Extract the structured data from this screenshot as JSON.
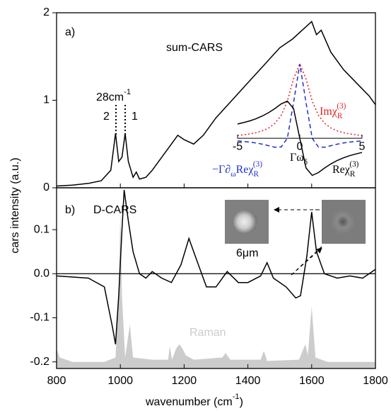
{
  "chart_data": [
    {
      "type": "line",
      "panel_label": "a)",
      "xlim": [
        800,
        1800
      ],
      "ylim": [
        0,
        2
      ],
      "yticks": [
        0,
        1,
        2
      ],
      "series": [
        {
          "name": "sum-CARS",
          "color": "#000000",
          "x": [
            800,
            850,
            900,
            940,
            970,
            985,
            995,
            1005,
            1015,
            1025,
            1040,
            1050,
            1060,
            1080,
            1100,
            1130,
            1160,
            1180,
            1200,
            1230,
            1260,
            1300,
            1350,
            1400,
            1450,
            1500,
            1540,
            1570,
            1600,
            1615,
            1630,
            1660,
            1700,
            1740,
            1780,
            1800
          ],
          "values": [
            0.02,
            0.03,
            0.05,
            0.08,
            0.2,
            0.62,
            0.3,
            0.35,
            0.62,
            0.3,
            0.12,
            0.18,
            0.1,
            0.12,
            0.2,
            0.35,
            0.5,
            0.6,
            0.55,
            0.5,
            0.6,
            0.8,
            1.0,
            1.2,
            1.4,
            1.6,
            1.7,
            1.8,
            1.9,
            1.75,
            1.8,
            1.55,
            1.35,
            1.2,
            1.05,
            0.95
          ]
        }
      ],
      "annotations": [
        [
          {
            "text": "28cm"
          },
          {
            "sup": "-1"
          }
        ],
        [
          {
            "text": "2"
          }
        ],
        [
          {
            "text": "1"
          }
        ]
      ]
    },
    {
      "type": "line",
      "panel_label": "b)",
      "xlim": [
        800,
        1800
      ],
      "xticks": [
        800,
        1000,
        1200,
        1400,
        1600,
        1800
      ],
      "ylim": [
        -0.215,
        0.195
      ],
      "yticks": [
        0.1,
        {
          "value": 0,
          "label": "0.0"
        },
        -0.1,
        -0.2
      ],
      "xlabel": [
        {
          "text": "wavenumber (cm"
        },
        {
          "sup": "-1"
        },
        {
          "text": ")"
        }
      ],
      "ylabel": "cars intensity (a.u.)",
      "series": [
        {
          "name": "Raman",
          "color": "#cccccc",
          "fill": true,
          "x": [
            800,
            810,
            850,
            950,
            985,
            995,
            1000,
            1005,
            1015,
            1030,
            1040,
            1100,
            1150,
            1155,
            1162,
            1175,
            1185,
            1195,
            1205,
            1230,
            1320,
            1330,
            1345,
            1440,
            1450,
            1460,
            1560,
            1580,
            1588,
            1600,
            1612,
            1650,
            1800
          ],
          "values": [
            -0.17,
            -0.19,
            -0.2,
            -0.2,
            -0.19,
            -0.05,
            0.14,
            -0.05,
            -0.19,
            -0.115,
            -0.19,
            -0.195,
            -0.195,
            -0.165,
            -0.195,
            -0.17,
            -0.16,
            -0.17,
            -0.185,
            -0.195,
            -0.19,
            -0.18,
            -0.195,
            -0.195,
            -0.175,
            -0.198,
            -0.195,
            -0.16,
            -0.185,
            -0.075,
            -0.19,
            -0.2,
            -0.2
          ]
        },
        {
          "name": "D-CARS",
          "color": "#000000",
          "x": [
            800,
            900,
            950,
            975,
            985,
            995,
            1005,
            1012,
            1025,
            1040,
            1060,
            1080,
            1100,
            1130,
            1160,
            1190,
            1215,
            1240,
            1270,
            1300,
            1335,
            1370,
            1400,
            1440,
            1460,
            1480,
            1520,
            1550,
            1565,
            1585,
            1600,
            1615,
            1640,
            1680,
            1720,
            1760,
            1800
          ],
          "values": [
            -0.005,
            -0.01,
            -0.03,
            -0.12,
            -0.16,
            -0.05,
            0.1,
            0.19,
            0.12,
            0.05,
            0.0,
            -0.01,
            0.005,
            -0.01,
            -0.02,
            0.02,
            0.08,
            0.03,
            -0.03,
            -0.03,
            0.005,
            -0.02,
            -0.02,
            -0.005,
            0.025,
            -0.01,
            -0.03,
            -0.055,
            -0.05,
            0.04,
            0.14,
            0.05,
            0.0,
            -0.01,
            -0.005,
            -0.01,
            0.01
          ]
        }
      ],
      "annotations": [
        [
          {
            "text": "6μm"
          }
        ]
      ]
    },
    {
      "type": "line",
      "xlim": [
        -5,
        5
      ],
      "xticks": [
        -5,
        0,
        5
      ],
      "ylim": [
        -0.6,
        1.05
      ],
      "x": [
        -5,
        -4.5,
        -4,
        -3.5,
        -3,
        -2.5,
        -2,
        -1.5,
        -1,
        -0.5,
        0,
        0.5,
        1,
        1.5,
        2,
        2.5,
        3,
        3.5,
        4,
        4.5,
        5
      ],
      "series": [
        {
          "name": [
            {
              "text": "Imχ"
            },
            {
              "sub": "R"
            },
            {
              "sup": "(3)"
            }
          ],
          "color": "#e02020",
          "dash": "dotted",
          "values": [
            0.038,
            0.047,
            0.059,
            0.075,
            0.1,
            0.138,
            0.2,
            0.308,
            0.5,
            0.8,
            1,
            0.8,
            0.5,
            0.308,
            0.2,
            0.138,
            0.1,
            0.075,
            0.059,
            0.047,
            0.038
          ]
        },
        {
          "name": [
            {
              "text": "−Γ∂"
            },
            {
              "sub": "ω"
            },
            {
              "text": "Reχ"
            },
            {
              "sub": "R"
            },
            {
              "sup": "(3)"
            }
          ],
          "color": "#2030d0",
          "dash": "dashed",
          "values": [
            -0.036,
            -0.043,
            -0.052,
            -0.064,
            -0.08,
            -0.1,
            -0.12,
            -0.118,
            0,
            0.48,
            1,
            0.48,
            0,
            -0.118,
            -0.12,
            -0.1,
            -0.08,
            -0.064,
            -0.052,
            -0.043,
            -0.036
          ]
        },
        {
          "name": [
            {
              "text": "Reχ"
            },
            {
              "sub": "R"
            },
            {
              "sup": "(3)"
            }
          ],
          "color": "#000000",
          "dash": "solid",
          "values": [
            0.192,
            0.212,
            0.235,
            0.264,
            0.3,
            0.345,
            0.4,
            0.462,
            0.5,
            0.4,
            0,
            -0.4,
            -0.5,
            -0.462,
            -0.4,
            -0.345,
            -0.3,
            -0.264,
            -0.235,
            -0.212,
            -0.192
          ]
        }
      ],
      "annotations": [
        [
          {
            "text": "Γω"
          },
          {
            "sub": "δ"
          }
        ]
      ]
    }
  ]
}
